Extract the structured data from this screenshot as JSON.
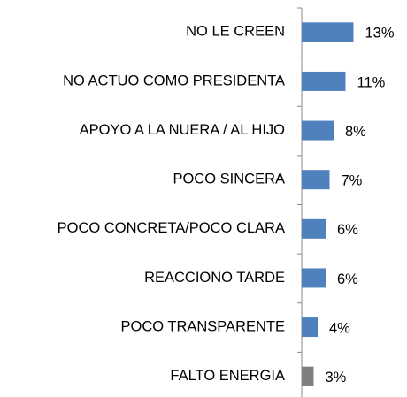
{
  "chart_data": {
    "type": "bar",
    "orientation": "horizontal",
    "categories": [
      "NO LE CREEN",
      "NO ACTUO COMO PRESIDENTA",
      "APOYO A LA NUERA / AL HIJO",
      "POCO SINCERA",
      "POCO CONCRETA/POCO CLARA",
      "REACCIONO TARDE",
      "POCO TRANSPARENTE",
      "FALTO ENERGIA"
    ],
    "values": [
      13,
      11,
      8,
      7,
      6,
      6,
      4,
      3
    ],
    "value_labels": [
      "13%",
      "11%",
      "8%",
      "7%",
      "6%",
      "6%",
      "4%",
      "3%"
    ],
    "colors": [
      "#4f81bd",
      "#4f81bd",
      "#4f81bd",
      "#4f81bd",
      "#4f81bd",
      "#4f81bd",
      "#4f81bd",
      "#7f7f7f"
    ],
    "xlim": [
      0,
      14
    ]
  }
}
